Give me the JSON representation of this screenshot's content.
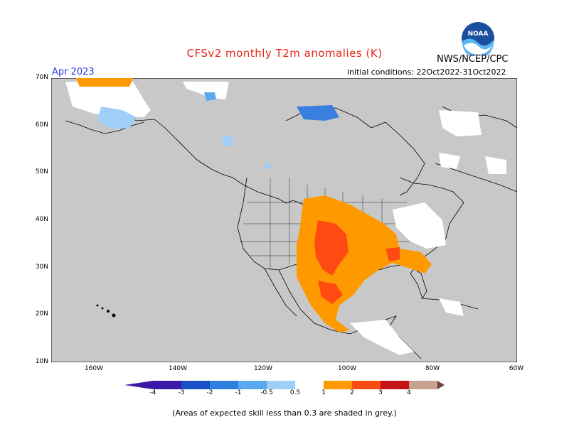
{
  "title": "CFSv2 monthly T2m anomalies (K)",
  "agency": "NWS/NCEP/CPC",
  "logo_text": "NOAA",
  "month": "Apr 2023",
  "initial_conditions": "initial conditions: 22Oct2022-31Oct2022",
  "lat_labels": [
    "70N",
    "60N",
    "50N",
    "40N",
    "30N",
    "20N",
    "10N"
  ],
  "lon_labels": [
    "160W",
    "140W",
    "120W",
    "100W",
    "80W",
    "60W"
  ],
  "colorbar_labels": [
    "-4",
    "-3",
    "-2",
    "-1",
    "-0.5",
    "0.5",
    "1",
    "2",
    "3",
    "4"
  ],
  "colorbar_colors": [
    "#3a1aa8",
    "#1a50c8",
    "#2f7fe0",
    "#5aa8ef",
    "#9fcef8",
    "#ffffff",
    "#ff9900",
    "#ff4a14",
    "#c41414",
    "#9a0000",
    "#c8a090",
    "#6e4436"
  ],
  "footnote": "(Areas of expected skill less than 0.3 are shaded in grey.)",
  "colors": {
    "land_grey": "#c8c8c8",
    "ocean": "#c8c8c8",
    "title": "#e8261a",
    "month": "#2a3adf"
  }
}
